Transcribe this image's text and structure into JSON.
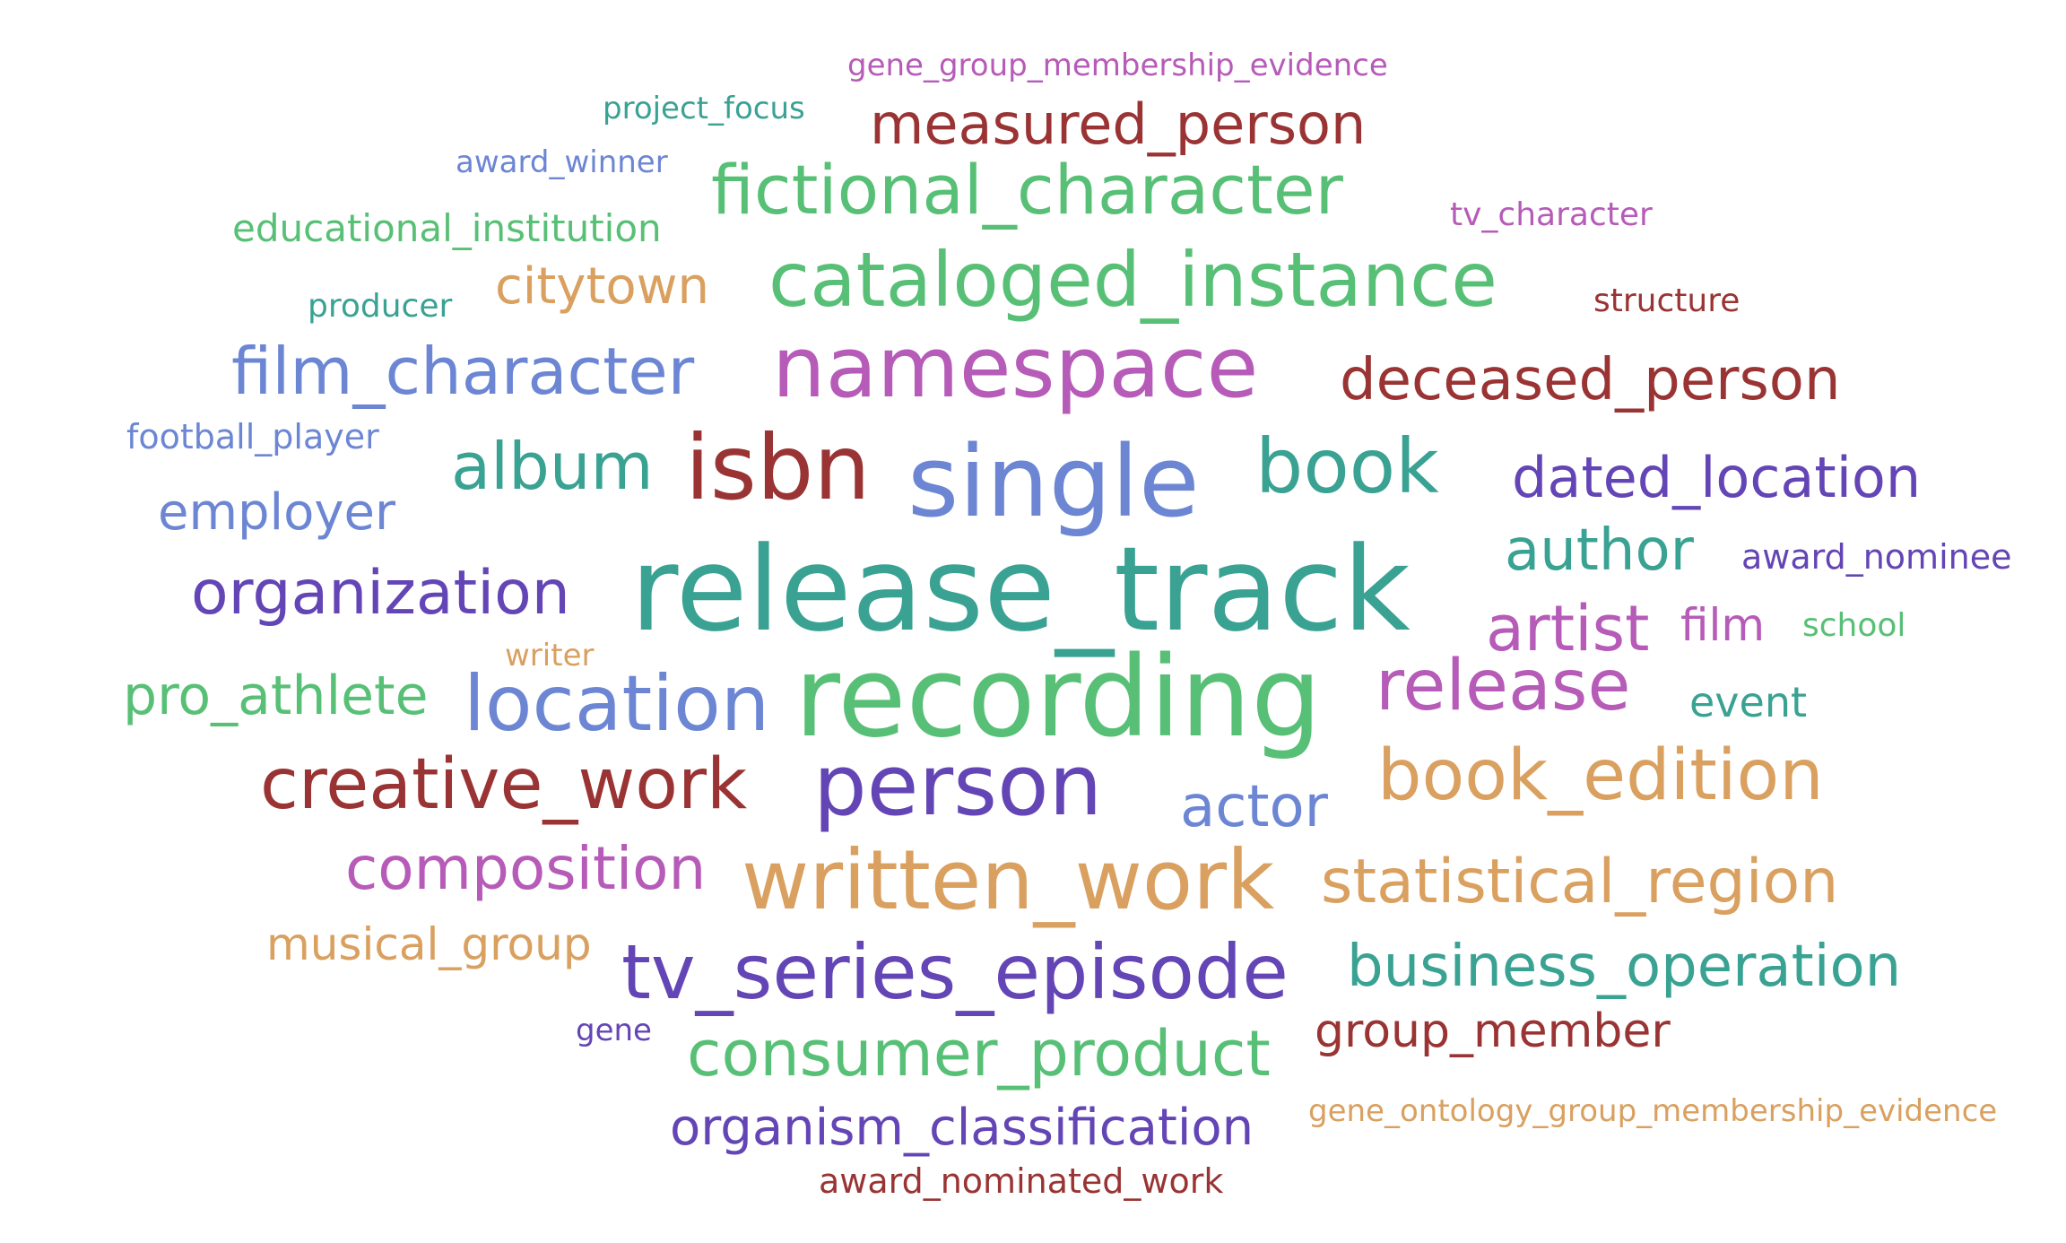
{
  "word_cloud": {
    "words": [
      {
        "text": "gene_group_membership_evidence",
        "color": "#b65bb8"
      },
      {
        "text": "project_focus",
        "color": "#3aa293"
      },
      {
        "text": "measured_person",
        "color": "#9a3434"
      },
      {
        "text": "award_winner",
        "color": "#6c86d4"
      },
      {
        "text": "fictional_character",
        "color": "#58c076"
      },
      {
        "text": "tv_character",
        "color": "#b65bb8"
      },
      {
        "text": "educational_institution",
        "color": "#58c076"
      },
      {
        "text": "citytown",
        "color": "#d9a060"
      },
      {
        "text": "cataloged_instance",
        "color": "#58c076"
      },
      {
        "text": "producer",
        "color": "#3aa293"
      },
      {
        "text": "structure",
        "color": "#9a3434"
      },
      {
        "text": "film_character",
        "color": "#6c86d4"
      },
      {
        "text": "namespace",
        "color": "#b65bb8"
      },
      {
        "text": "deceased_person",
        "color": "#9a3434"
      },
      {
        "text": "football_player",
        "color": "#6c86d4"
      },
      {
        "text": "album",
        "color": "#3aa293"
      },
      {
        "text": "isbn",
        "color": "#9a3434"
      },
      {
        "text": "single",
        "color": "#6c86d4"
      },
      {
        "text": "book",
        "color": "#3aa293"
      },
      {
        "text": "dated_location",
        "color": "#6345b5"
      },
      {
        "text": "employer",
        "color": "#6c86d4"
      },
      {
        "text": "author",
        "color": "#3aa293"
      },
      {
        "text": "award_nominee",
        "color": "#6345b5"
      },
      {
        "text": "organization",
        "color": "#6345b5"
      },
      {
        "text": "release_track",
        "color": "#3aa293"
      },
      {
        "text": "artist",
        "color": "#b65bb8"
      },
      {
        "text": "film",
        "color": "#b65bb8"
      },
      {
        "text": "school",
        "color": "#58c076"
      },
      {
        "text": "writer",
        "color": "#d9a060"
      },
      {
        "text": "pro_athlete",
        "color": "#58c076"
      },
      {
        "text": "location",
        "color": "#6c86d4"
      },
      {
        "text": "recording",
        "color": "#58c076"
      },
      {
        "text": "release",
        "color": "#b65bb8"
      },
      {
        "text": "event",
        "color": "#3aa293"
      },
      {
        "text": "creative_work",
        "color": "#9a3434"
      },
      {
        "text": "person",
        "color": "#6345b5"
      },
      {
        "text": "actor",
        "color": "#6c86d4"
      },
      {
        "text": "book_edition",
        "color": "#d9a060"
      },
      {
        "text": "composition",
        "color": "#b65bb8"
      },
      {
        "text": "written_work",
        "color": "#d9a060"
      },
      {
        "text": "statistical_region",
        "color": "#d9a060"
      },
      {
        "text": "musical_group",
        "color": "#d9a060"
      },
      {
        "text": "tv_series_episode",
        "color": "#6345b5"
      },
      {
        "text": "business_operation",
        "color": "#3aa293"
      },
      {
        "text": "gene",
        "color": "#6345b5"
      },
      {
        "text": "consumer_product",
        "color": "#58c076"
      },
      {
        "text": "group_member",
        "color": "#9a3434"
      },
      {
        "text": "gene_ontology_group_membership_evidence",
        "color": "#d9a060"
      },
      {
        "text": "organism_classification",
        "color": "#6345b5"
      },
      {
        "text": "award_nominated_work",
        "color": "#9a3434"
      }
    ]
  }
}
